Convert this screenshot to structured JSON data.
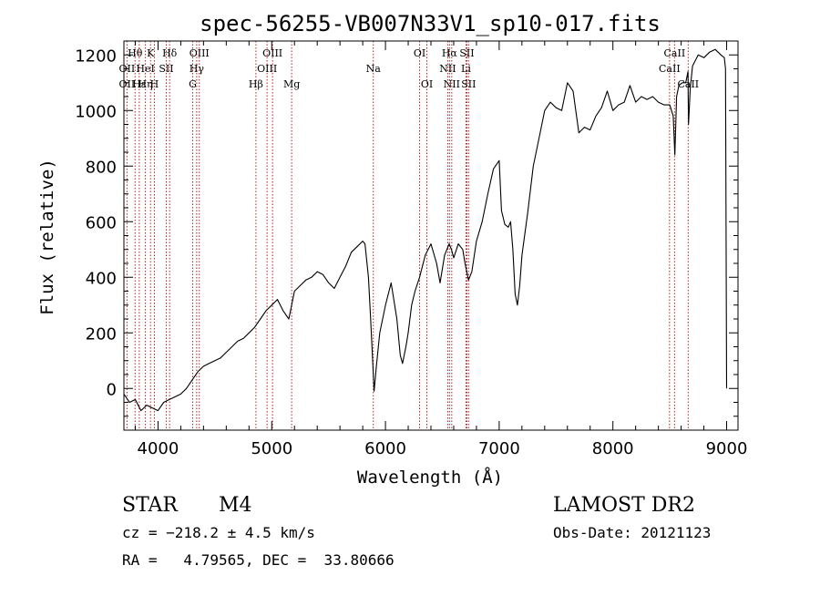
{
  "chart_data": {
    "type": "line",
    "title": "spec-56255-VB007N33V1_sp10-017.fits",
    "xlabel": "Wavelength (Å)",
    "ylabel": "Flux (relative)",
    "xlim": [
      3700,
      9100
    ],
    "ylim": [
      -150,
      1250
    ],
    "xticks": [
      4000,
      5000,
      6000,
      7000,
      8000,
      9000
    ],
    "xtick_labels": [
      "4000",
      "5000",
      "6000",
      "7000",
      "8000",
      "9000"
    ],
    "yticks": [
      0,
      200,
      400,
      600,
      800,
      1000,
      1200
    ],
    "ytick_labels": [
      "0",
      "200",
      "400",
      "600",
      "800",
      "1000",
      "1200"
    ],
    "grid": false,
    "colors": {
      "spectrum": "#000000",
      "line_markers": "#b22222",
      "axes": "#000000"
    },
    "series": [
      {
        "x": [
          3700,
          3750,
          3800,
          3850,
          3900,
          3950,
          4000,
          4050,
          4100,
          4150,
          4200,
          4250,
          4300,
          4350,
          4400,
          4450,
          4500,
          4550,
          4600,
          4650,
          4700,
          4750,
          4800,
          4850,
          4900,
          4950,
          5000,
          5050,
          5100,
          5150,
          5200,
          5250,
          5300,
          5350,
          5400,
          5450,
          5500,
          5550,
          5600,
          5650,
          5700,
          5750,
          5800,
          5820,
          5850,
          5870,
          5890,
          5900,
          5920,
          5950,
          6000,
          6050,
          6100,
          6130,
          6150,
          6180,
          6200,
          6230,
          6260,
          6300,
          6350,
          6400,
          6450,
          6480,
          6520,
          6560,
          6580,
          6600,
          6640,
          6680,
          6700,
          6730,
          6760,
          6800,
          6850,
          6900,
          6950,
          7000,
          7020,
          7050,
          7080,
          7100,
          7120,
          7140,
          7160,
          7180,
          7200,
          7250,
          7300,
          7350,
          7400,
          7450,
          7500,
          7550,
          7600,
          7650,
          7700,
          7750,
          7800,
          7850,
          7900,
          7950,
          8000,
          8050,
          8100,
          8150,
          8200,
          8250,
          8300,
          8350,
          8400,
          8450,
          8500,
          8530,
          8545,
          8560,
          8580,
          8610,
          8640,
          8660,
          8665,
          8680,
          8700,
          8750,
          8800,
          8850,
          8900,
          8950,
          8980,
          8990,
          9000
        ],
        "y": [
          -20,
          -50,
          -40,
          -80,
          -60,
          -70,
          -80,
          -50,
          -40,
          -30,
          -20,
          0,
          30,
          60,
          80,
          90,
          100,
          110,
          130,
          150,
          170,
          180,
          200,
          220,
          250,
          280,
          300,
          320,
          280,
          250,
          350,
          370,
          390,
          400,
          420,
          410,
          380,
          360,
          400,
          440,
          490,
          510,
          530,
          520,
          400,
          250,
          80,
          -10,
          80,
          200,
          300,
          380,
          250,
          120,
          90,
          150,
          200,
          300,
          350,
          400,
          480,
          520,
          450,
          380,
          480,
          520,
          500,
          470,
          520,
          500,
          450,
          390,
          420,
          530,
          600,
          700,
          790,
          820,
          640,
          590,
          580,
          600,
          500,
          340,
          300,
          370,
          480,
          630,
          800,
          900,
          1000,
          1030,
          1010,
          1000,
          1100,
          1070,
          920,
          940,
          930,
          980,
          1010,
          1070,
          1000,
          1020,
          1030,
          1090,
          1030,
          1050,
          1040,
          1050,
          1030,
          1020,
          1020,
          980,
          840,
          1050,
          1090,
          1100,
          1100,
          1140,
          950,
          1080,
          1160,
          1200,
          1190,
          1210,
          1220,
          1200,
          1190,
          1150,
          0
        ]
      }
    ],
    "line_markers": {
      "lines": [
        {
          "label": "Hθ",
          "x": 3798,
          "row": 0
        },
        {
          "label": "K",
          "x": 3934,
          "row": 0
        },
        {
          "label": "Hδ",
          "x": 4102,
          "row": 0
        },
        {
          "label": "OIII",
          "x": 4363,
          "row": 0
        },
        {
          "label": "OIII",
          "x": 5007,
          "row": 0
        },
        {
          "label": "OI",
          "x": 6300,
          "row": 0
        },
        {
          "label": "Hα",
          "x": 6563,
          "row": 0
        },
        {
          "label": "SII",
          "x": 6716,
          "row": 0
        },
        {
          "label": "CaII",
          "x": 8542,
          "row": 0
        },
        {
          "label": "OII",
          "x": 3727,
          "row": 1
        },
        {
          "label": "HeI",
          "x": 3889,
          "row": 1
        },
        {
          "label": "SII",
          "x": 4072,
          "row": 1
        },
        {
          "label": "Hγ",
          "x": 4340,
          "row": 1
        },
        {
          "label": "OIII",
          "x": 4959,
          "row": 1
        },
        {
          "label": "Na",
          "x": 5893,
          "row": 1
        },
        {
          "label": "NII",
          "x": 6548,
          "row": 1
        },
        {
          "label": "Li",
          "x": 6708,
          "row": 1
        },
        {
          "label": "CaII",
          "x": 8498,
          "row": 1
        },
        {
          "label": "OII",
          "x": 3727,
          "row": 2
        },
        {
          "label": "Hε",
          "x": 3835,
          "row": 2
        },
        {
          "label": "Hη",
          "x": 3889,
          "row": 2
        },
        {
          "label": "H",
          "x": 3968,
          "row": 2
        },
        {
          "label": "G",
          "x": 4305,
          "row": 2
        },
        {
          "label": "Hβ",
          "x": 4861,
          "row": 2
        },
        {
          "label": "Mg",
          "x": 5175,
          "row": 2
        },
        {
          "label": "OI",
          "x": 6364,
          "row": 2
        },
        {
          "label": "NII",
          "x": 6583,
          "row": 2
        },
        {
          "label": "SII",
          "x": 6731,
          "row": 2
        },
        {
          "label": "CaII",
          "x": 8662,
          "row": 2
        }
      ]
    }
  },
  "footer": {
    "object_class": "STAR",
    "subclass": "M4",
    "survey": "LAMOST DR2",
    "redshift": "cz = −218.2 ± 4.5 km/s",
    "obs_date": "Obs-Date: 20121123",
    "coordinates": "RA =   4.79565, DEC =  33.80666"
  }
}
